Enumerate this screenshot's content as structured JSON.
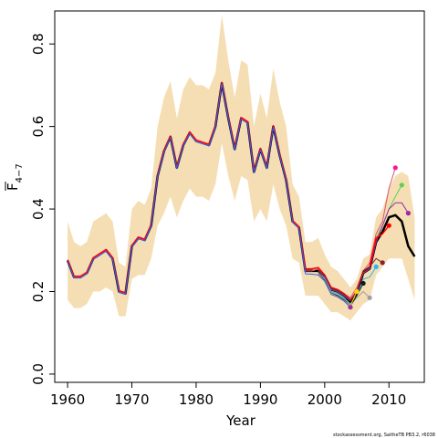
{
  "chart_data": {
    "type": "line",
    "xlabel": "Year",
    "ylabel_main": "F",
    "ylabel_sub": "4−7",
    "credit": "stockassessment.org, SaitheTB PB3.2, r6038",
    "xlim": [
      1958,
      2015.5
    ],
    "ylim": [
      -0.02,
      0.88
    ],
    "xticks": [
      1960,
      1970,
      1980,
      1990,
      2000,
      2010
    ],
    "yticks": [
      0.0,
      0.2,
      0.4,
      0.6,
      0.8
    ],
    "ytick_labels": [
      "0.0",
      "0.2",
      "0.4",
      "0.6",
      "0.8"
    ],
    "band_color": "#f5deb3",
    "band": {
      "x": [
        1960,
        1961,
        1962,
        1963,
        1964,
        1965,
        1966,
        1967,
        1968,
        1969,
        1970,
        1971,
        1972,
        1973,
        1974,
        1975,
        1976,
        1977,
        1978,
        1979,
        1980,
        1981,
        1982,
        1983,
        1984,
        1985,
        1986,
        1987,
        1988,
        1989,
        1990,
        1991,
        1992,
        1993,
        1994,
        1995,
        1996,
        1997,
        1998,
        1999,
        2000,
        2001,
        2002,
        2003,
        2004,
        2005,
        2006,
        2007,
        2008,
        2009,
        2010,
        2011,
        2012,
        2013,
        2014
      ],
      "upper": [
        0.37,
        0.32,
        0.31,
        0.32,
        0.37,
        0.38,
        0.39,
        0.37,
        0.27,
        0.26,
        0.4,
        0.42,
        0.41,
        0.45,
        0.6,
        0.67,
        0.71,
        0.62,
        0.69,
        0.72,
        0.7,
        0.7,
        0.69,
        0.73,
        0.87,
        0.76,
        0.67,
        0.76,
        0.75,
        0.6,
        0.68,
        0.62,
        0.74,
        0.66,
        0.6,
        0.46,
        0.43,
        0.32,
        0.32,
        0.33,
        0.29,
        0.26,
        0.25,
        0.23,
        0.21,
        0.23,
        0.28,
        0.29,
        0.38,
        0.4,
        0.45,
        0.48,
        0.49,
        0.48,
        0.38
      ],
      "lower": [
        0.18,
        0.16,
        0.16,
        0.17,
        0.2,
        0.2,
        0.21,
        0.2,
        0.14,
        0.14,
        0.23,
        0.24,
        0.24,
        0.28,
        0.36,
        0.39,
        0.43,
        0.38,
        0.42,
        0.45,
        0.43,
        0.43,
        0.42,
        0.46,
        0.56,
        0.48,
        0.42,
        0.48,
        0.47,
        0.37,
        0.4,
        0.37,
        0.46,
        0.4,
        0.36,
        0.28,
        0.27,
        0.19,
        0.19,
        0.19,
        0.17,
        0.15,
        0.15,
        0.14,
        0.13,
        0.15,
        0.17,
        0.18,
        0.24,
        0.26,
        0.28,
        0.28,
        0.28,
        0.23,
        0.18
      ]
    },
    "series": [
      {
        "color": "#000000",
        "width": 2.5,
        "x": [
          1960,
          1961,
          1962,
          1963,
          1964,
          1965,
          1966,
          1967,
          1968,
          1969,
          1970,
          1971,
          1972,
          1973,
          1974,
          1975,
          1976,
          1977,
          1978,
          1979,
          1980,
          1981,
          1982,
          1983,
          1984,
          1985,
          1986,
          1987,
          1988,
          1989,
          1990,
          1991,
          1992,
          1993,
          1994,
          1995,
          1996,
          1997,
          1998,
          1999,
          2000,
          2001,
          2002,
          2003,
          2004,
          2005,
          2006,
          2007,
          2008,
          2009,
          2010,
          2011,
          2012,
          2013,
          2014
        ],
        "y": [
          0.275,
          0.235,
          0.235,
          0.245,
          0.28,
          0.29,
          0.3,
          0.28,
          0.2,
          0.195,
          0.31,
          0.33,
          0.325,
          0.36,
          0.48,
          0.54,
          0.575,
          0.5,
          0.555,
          0.585,
          0.565,
          0.56,
          0.555,
          0.6,
          0.705,
          0.62,
          0.545,
          0.62,
          0.61,
          0.49,
          0.545,
          0.5,
          0.6,
          0.53,
          0.47,
          0.37,
          0.355,
          0.25,
          0.25,
          0.25,
          0.235,
          0.205,
          0.2,
          0.19,
          0.175,
          0.195,
          0.245,
          0.255,
          0.32,
          0.345,
          0.38,
          0.385,
          0.37,
          0.31,
          0.285
        ]
      },
      {
        "color": "#df536b",
        "width": 1,
        "x": [
          1960,
          1961,
          1962,
          1963,
          1964,
          1965,
          1966,
          1967,
          1968,
          1969,
          1970,
          1971,
          1972,
          1973,
          1974,
          1975,
          1976,
          1977,
          1978,
          1979,
          1980,
          1981,
          1982,
          1983,
          1984,
          1985,
          1986,
          1987,
          1988,
          1989,
          1990,
          1991,
          1992,
          1993,
          1994,
          1995,
          1996,
          1997,
          1998,
          1999,
          2000,
          2001,
          2002,
          2003,
          2004,
          2005,
          2006,
          2007,
          2008,
          2009,
          2010,
          2011
        ],
        "y": [
          0.275,
          0.235,
          0.235,
          0.245,
          0.28,
          0.29,
          0.3,
          0.28,
          0.2,
          0.195,
          0.31,
          0.33,
          0.325,
          0.36,
          0.48,
          0.54,
          0.575,
          0.5,
          0.555,
          0.585,
          0.565,
          0.56,
          0.555,
          0.6,
          0.705,
          0.62,
          0.545,
          0.62,
          0.61,
          0.49,
          0.545,
          0.5,
          0.6,
          0.53,
          0.47,
          0.37,
          0.355,
          0.25,
          0.25,
          0.255,
          0.24,
          0.21,
          0.205,
          0.195,
          0.185,
          0.21,
          0.25,
          0.27,
          0.34,
          0.37,
          0.45,
          0.5
        ]
      },
      {
        "color": "#61d04f",
        "width": 1,
        "x": [
          1999,
          2000,
          2001,
          2002,
          2003,
          2004,
          2005,
          2006,
          2007,
          2008,
          2009,
          2010,
          2011,
          2012
        ],
        "y": [
          0.25,
          0.235,
          0.205,
          0.2,
          0.19,
          0.178,
          0.2,
          0.245,
          0.255,
          0.33,
          0.36,
          0.4,
          0.43,
          0.458
        ]
      },
      {
        "color": "#9c27b0",
        "width": 1,
        "x": [
          1999,
          2000,
          2001,
          2002,
          2003,
          2004,
          2005,
          2006,
          2007,
          2008,
          2009,
          2010,
          2011,
          2012,
          2013
        ],
        "y": [
          0.25,
          0.235,
          0.205,
          0.2,
          0.19,
          0.178,
          0.2,
          0.245,
          0.255,
          0.32,
          0.36,
          0.4,
          0.415,
          0.415,
          0.39
        ]
      },
      {
        "color": "#ff0000",
        "width": 1.5,
        "x": [
          1960,
          1961,
          1962,
          1963,
          1964,
          1965,
          1966,
          1967,
          1968,
          1969,
          1970,
          1971,
          1972,
          1973,
          1974,
          1975,
          1976,
          1977,
          1978,
          1979,
          1980,
          1981,
          1982,
          1983,
          1984,
          1985,
          1986,
          1987,
          1988,
          1989,
          1990,
          1991,
          1992,
          1993,
          1994,
          1995,
          1996,
          1997,
          1998,
          1999,
          2000,
          2001,
          2002,
          2003,
          2004,
          2005,
          2006,
          2007,
          2008,
          2009,
          2010
        ],
        "y": [
          0.277,
          0.237,
          0.237,
          0.247,
          0.282,
          0.292,
          0.302,
          0.282,
          0.202,
          0.197,
          0.312,
          0.332,
          0.327,
          0.362,
          0.482,
          0.542,
          0.577,
          0.502,
          0.557,
          0.587,
          0.567,
          0.562,
          0.557,
          0.602,
          0.707,
          0.622,
          0.547,
          0.622,
          0.612,
          0.492,
          0.547,
          0.502,
          0.602,
          0.532,
          0.472,
          0.372,
          0.357,
          0.255,
          0.255,
          0.258,
          0.24,
          0.21,
          0.205,
          0.195,
          0.18,
          0.2,
          0.25,
          0.26,
          0.33,
          0.34,
          0.36
        ]
      },
      {
        "color": "#8b2323",
        "width": 1,
        "x": [
          1999,
          2000,
          2001,
          2002,
          2003,
          2004,
          2005,
          2006,
          2007,
          2008,
          2009
        ],
        "y": [
          0.25,
          0.24,
          0.208,
          0.203,
          0.193,
          0.18,
          0.2,
          0.25,
          0.26,
          0.28,
          0.27
        ]
      },
      {
        "color": "#29b6f6",
        "width": 1,
        "x": [
          1999,
          2000,
          2001,
          2002,
          2003,
          2004,
          2005,
          2006,
          2007,
          2008
        ],
        "y": [
          0.245,
          0.232,
          0.2,
          0.195,
          0.185,
          0.17,
          0.19,
          0.23,
          0.235,
          0.26
        ]
      },
      {
        "color": "#9e9e9e",
        "width": 1,
        "x": [
          1999,
          2000,
          2001,
          2002,
          2003,
          2004,
          2005,
          2006,
          2007
        ],
        "y": [
          0.245,
          0.23,
          0.198,
          0.192,
          0.182,
          0.168,
          0.185,
          0.2,
          0.185
        ]
      },
      {
        "color": "#1a1a1a",
        "width": 1,
        "x": [
          1999,
          2000,
          2001,
          2002,
          2003,
          2004,
          2005,
          2006
        ],
        "y": [
          0.243,
          0.228,
          0.196,
          0.19,
          0.18,
          0.165,
          0.19,
          0.22
        ]
      },
      {
        "color": "#ffd600",
        "width": 1,
        "x": [
          1999,
          2000,
          2001,
          2002,
          2003,
          2004,
          2005
        ],
        "y": [
          0.242,
          0.226,
          0.195,
          0.188,
          0.178,
          0.165,
          0.2
        ]
      },
      {
        "color": "#2962ff",
        "width": 1,
        "x": [
          1960,
          1961,
          1962,
          1963,
          1964,
          1965,
          1966,
          1967,
          1968,
          1969,
          1970,
          1971,
          1972,
          1973,
          1974,
          1975,
          1976,
          1977,
          1978,
          1979,
          1980,
          1981,
          1982,
          1983,
          1984,
          1985,
          1986,
          1987,
          1988,
          1989,
          1990,
          1991,
          1992,
          1993,
          1994,
          1995,
          1996,
          1997,
          1998,
          1999,
          2000,
          2001,
          2002,
          2003,
          2004
        ],
        "y": [
          0.273,
          0.233,
          0.233,
          0.243,
          0.278,
          0.288,
          0.298,
          0.278,
          0.198,
          0.193,
          0.308,
          0.328,
          0.323,
          0.358,
          0.478,
          0.538,
          0.573,
          0.498,
          0.553,
          0.583,
          0.563,
          0.558,
          0.553,
          0.598,
          0.703,
          0.618,
          0.543,
          0.618,
          0.608,
          0.488,
          0.543,
          0.498,
          0.598,
          0.528,
          0.468,
          0.368,
          0.353,
          0.243,
          0.242,
          0.24,
          0.225,
          0.193,
          0.187,
          0.177,
          0.162
        ]
      }
    ],
    "end_points": [
      {
        "x": 2004,
        "y": 0.162,
        "color": "#9c27b0"
      },
      {
        "x": 2005,
        "y": 0.2,
        "color": "#ffd600"
      },
      {
        "x": 2006,
        "y": 0.22,
        "color": "#1a1a1a"
      },
      {
        "x": 2007,
        "y": 0.185,
        "color": "#9e9e9e"
      },
      {
        "x": 2008,
        "y": 0.26,
        "color": "#29b6f6"
      },
      {
        "x": 2009,
        "y": 0.27,
        "color": "#8b2323"
      },
      {
        "x": 2010,
        "y": 0.36,
        "color": "#ff0000"
      },
      {
        "x": 2011,
        "y": 0.5,
        "color": "#ff1493"
      },
      {
        "x": 2012,
        "y": 0.458,
        "color": "#61d04f"
      },
      {
        "x": 2013,
        "y": 0.39,
        "color": "#9c27b0"
      }
    ]
  }
}
